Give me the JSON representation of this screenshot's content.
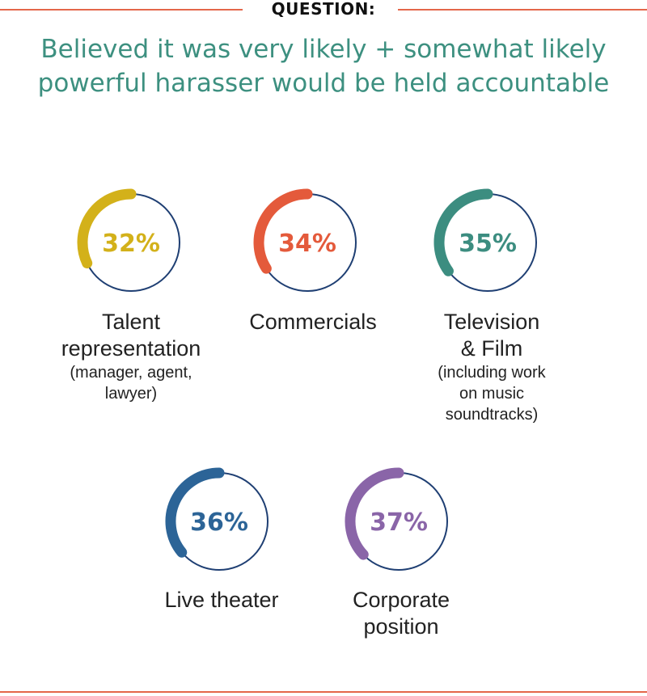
{
  "header": {
    "question_label": "QUESTION:"
  },
  "title_lines": [
    "Believed it was very likely + somewhat likely",
    "powerful harasser would be held accountable"
  ],
  "colors": {
    "rule": "#e4674a",
    "title": "#3d9080",
    "circle_outline": "#1f3f73",
    "talent": "#d3b11a",
    "commercials": "#e45a3b",
    "television": "#3c8d80",
    "theater": "#2c6497",
    "corporate": "#8a65a8"
  },
  "chart_data": {
    "type": "donut",
    "title": "Believed it was very likely + somewhat likely powerful harasser would be held accountable",
    "unit": "%",
    "items": [
      {
        "key": "talent",
        "value": 32,
        "value_label": "32%",
        "label_lines": [
          "Talent",
          "representation"
        ],
        "sublabel_lines": [
          "(manager, agent,",
          "lawyer)"
        ],
        "color": "#d3b11a"
      },
      {
        "key": "commercials",
        "value": 34,
        "value_label": "34%",
        "label_lines": [
          "Commercials"
        ],
        "sublabel_lines": [],
        "color": "#e45a3b"
      },
      {
        "key": "television",
        "value": 35,
        "value_label": "35%",
        "label_lines": [
          "Television",
          "& Film"
        ],
        "sublabel_lines": [
          "(including work",
          "on music",
          "soundtracks)"
        ],
        "color": "#3c8d80"
      },
      {
        "key": "theater",
        "value": 36,
        "value_label": "36%",
        "label_lines": [
          "Live theater"
        ],
        "sublabel_lines": [],
        "color": "#2c6497"
      },
      {
        "key": "corporate",
        "value": 37,
        "value_label": "37%",
        "label_lines": [
          "Corporate",
          "position"
        ],
        "sublabel_lines": [],
        "color": "#8a65a8"
      }
    ]
  }
}
